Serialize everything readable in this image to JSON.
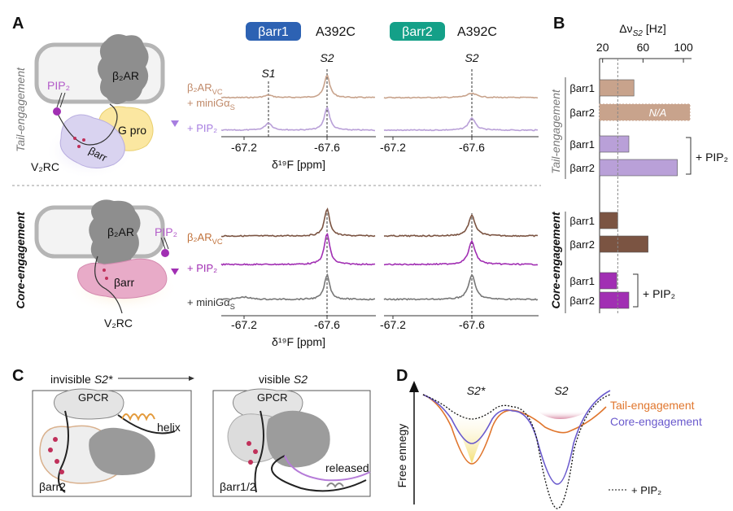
{
  "figure": {
    "panel_labels": [
      "A",
      "B",
      "C",
      "D"
    ],
    "panel_a": {
      "constructs": [
        {
          "name": "βarr1",
          "mutant": "A392C"
        },
        {
          "name": "βarr2",
          "mutant": "A392C"
        }
      ],
      "tail": {
        "mode": "Tail-engagement",
        "receptor": "β₂AR",
        "lipid": "PIP₂",
        "gprotein": "G pro",
        "arrestin": "βarr",
        "tail": "V₂RC",
        "conditions": [
          {
            "main": "β₂AR",
            "sub": "VC"
          },
          {
            "main": "+ miniGα",
            "sub": "S"
          },
          {
            "main": "+ PIP₂"
          }
        ]
      },
      "core": {
        "mode": "Core-engagement",
        "receptor": "β₂AR",
        "lipid": "PIP₂",
        "arrestin": "βarr",
        "tail": "V₂RC",
        "conditions": [
          {
            "main": "β₂AR",
            "sub": "VC"
          },
          {
            "main": "+ PIP₂"
          },
          {
            "main": "+ miniGα",
            "sub": "S"
          }
        ]
      },
      "peaks": {
        "s1": "S1",
        "s2": "S2"
      },
      "xticks": [
        "-67.2",
        "-67.6"
      ],
      "xlabel": "δ¹⁹F [ppm]"
    },
    "panel_c": {
      "before": {
        "word": "invisible",
        "state": "S2*"
      },
      "after": {
        "word": "visible",
        "state": "S2"
      },
      "receptor": "GPCR",
      "helix": "helix",
      "released": "released",
      "left_arrestin": "βarr2",
      "right_arrestin": "βarr1/2"
    },
    "panel_d": {
      "ylabel": "Free ennegy",
      "states": [
        "S2*",
        "S2"
      ],
      "legend": [
        "Tail-engagement",
        "Core-engagement"
      ],
      "pip": "+ PIP₂"
    }
  },
  "chart_data": {
    "type": "barh",
    "xlabel": {
      "main": "Δν",
      "sub": "S2",
      "unit": "[Hz]"
    },
    "categories": [
      "βarr1",
      "βarr2",
      "βarr1",
      "βarr2",
      "βarr1",
      "βarr2",
      "βarr1",
      "βarr2"
    ],
    "values": [
      51,
      null,
      46,
      94,
      35,
      65,
      34,
      46
    ],
    "value_labels": [
      null,
      "N/A",
      null,
      null,
      null,
      null,
      null,
      null
    ],
    "colors": [
      "#c8a38c",
      "#c8a38c",
      "#b9a0d8",
      "#b9a0d8",
      "#7b5442",
      "#7b5442",
      "#a12fb3",
      "#a12fb3"
    ],
    "group_labels": [
      "Tail-engagement",
      "Core-engagement"
    ],
    "bracket_label": "+ PIP₂",
    "xlim": [
      17,
      108
    ],
    "xticks": [
      20,
      60,
      100
    ]
  }
}
